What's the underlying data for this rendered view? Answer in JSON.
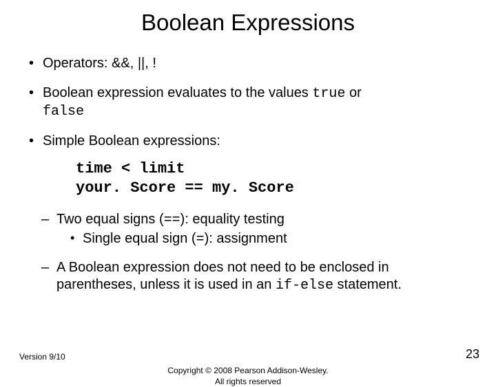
{
  "title": "Boolean Expressions",
  "bullets": {
    "b1_pre": "Operators:  ",
    "b1_ops": "&&, ||, !",
    "b2_pre": "Boolean expression evaluates to the values ",
    "b2_true": "true",
    "b2_mid": " or ",
    "b2_false": "false",
    "b3": "Simple Boolean expressions:"
  },
  "code": {
    "line1": "time < limit",
    "line2": "your. Score == my. Score"
  },
  "sub": {
    "s1_pre": "Two equal signs (",
    "s1_eq": "==",
    "s1_post": "):  equality testing",
    "s1a_pre": "Single equal sign (",
    "s1a_eq": "=",
    "s1a_post": "): assignment",
    "s2_pre": "A Boolean expression does not need to be enclosed in parentheses, unless it is used in an ",
    "s2_code": "if-else",
    "s2_post": " statement."
  },
  "footer": {
    "version": "Version 9/10",
    "copyright1": "Copyright © 2008 Pearson Addison-Wesley.",
    "copyright2": "All rights reserved",
    "page": "23"
  },
  "style": {
    "title_fontsize": 33,
    "body_fontsize": 20,
    "code_fontsize": 22,
    "footer_fontsize": 12,
    "pageno_fontsize": 18,
    "text_color": "#000000",
    "background_color": "#ffffff",
    "mono_family": "Courier New"
  }
}
